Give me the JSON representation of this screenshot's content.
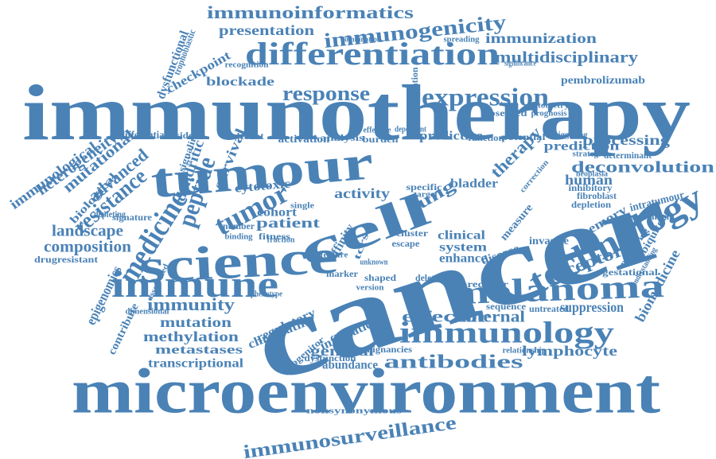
{
  "style": {
    "color": "#4a82b6",
    "background": "#ffffff"
  },
  "words": [
    "immunotherapy",
    "cancer",
    "microenvironment",
    "tumour",
    "science",
    "cell",
    "technology",
    "immune",
    "melanoma",
    "immunology",
    "differentiation",
    "expression",
    "medicine",
    "tumor",
    "immunoinformatics",
    "immunogenicity",
    "response",
    "multidisciplinary",
    "immunization",
    "presentation",
    "checkpoint",
    "blockade",
    "pembrolizumab",
    "resistance",
    "peptide",
    "deconvolution",
    "processing",
    "prediction",
    "human",
    "memory",
    "receptor",
    "biomedicine",
    "immunosurveillance",
    "nonsynonymous",
    "antibodies",
    "lymphocyte",
    "effector",
    "internal",
    "general",
    "abundance",
    "transcriptional",
    "metastases",
    "methylation",
    "mutation",
    "immunity",
    "epigenomics",
    "contribute",
    "composition",
    "drugresistant",
    "landscape",
    "immunological",
    "heterogeneity",
    "mutational",
    "biological",
    "advanced",
    "dendritic",
    "survival",
    "cytotoxic",
    "patient",
    "activity",
    "lung",
    "bladder",
    "therapy",
    "predictive",
    "activation",
    "analysis",
    "burden",
    "function",
    "potential",
    "observed",
    "prognosis",
    "cytometry",
    "clinical",
    "system",
    "enhance",
    "disease",
    "measure",
    "invasive",
    "suppression",
    "untreated",
    "sequence",
    "predictor",
    "regulatory",
    "chromatin",
    "infiltration",
    "malignancies",
    "dysfunction",
    "progenitor",
    "marker",
    "affinity",
    "cohort",
    "fitness",
    "specific",
    "ubiquitous",
    "gestational",
    "intratumour",
    "mechanism",
    "depletion",
    "fibroblast",
    "inhibitory",
    "neoplasia",
    "determinant",
    "strategies",
    "triggering",
    "dysfunctional",
    "trophoblastic",
    "recognition",
    "combination",
    "spreading",
    "significance",
    "population",
    "differential",
    "resident",
    "relevant",
    "signaling",
    "signature",
    "depleting",
    "number",
    "binding",
    "fraction",
    "tcrs",
    "cluster",
    "escape",
    "shaped",
    "deletion",
    "relationship",
    "understanding",
    "preserving",
    "phenotype",
    "dimensional",
    "associated",
    "effective",
    "dependent",
    "correction",
    "target",
    "single",
    "feature",
    "version",
    "unknown"
  ]
}
